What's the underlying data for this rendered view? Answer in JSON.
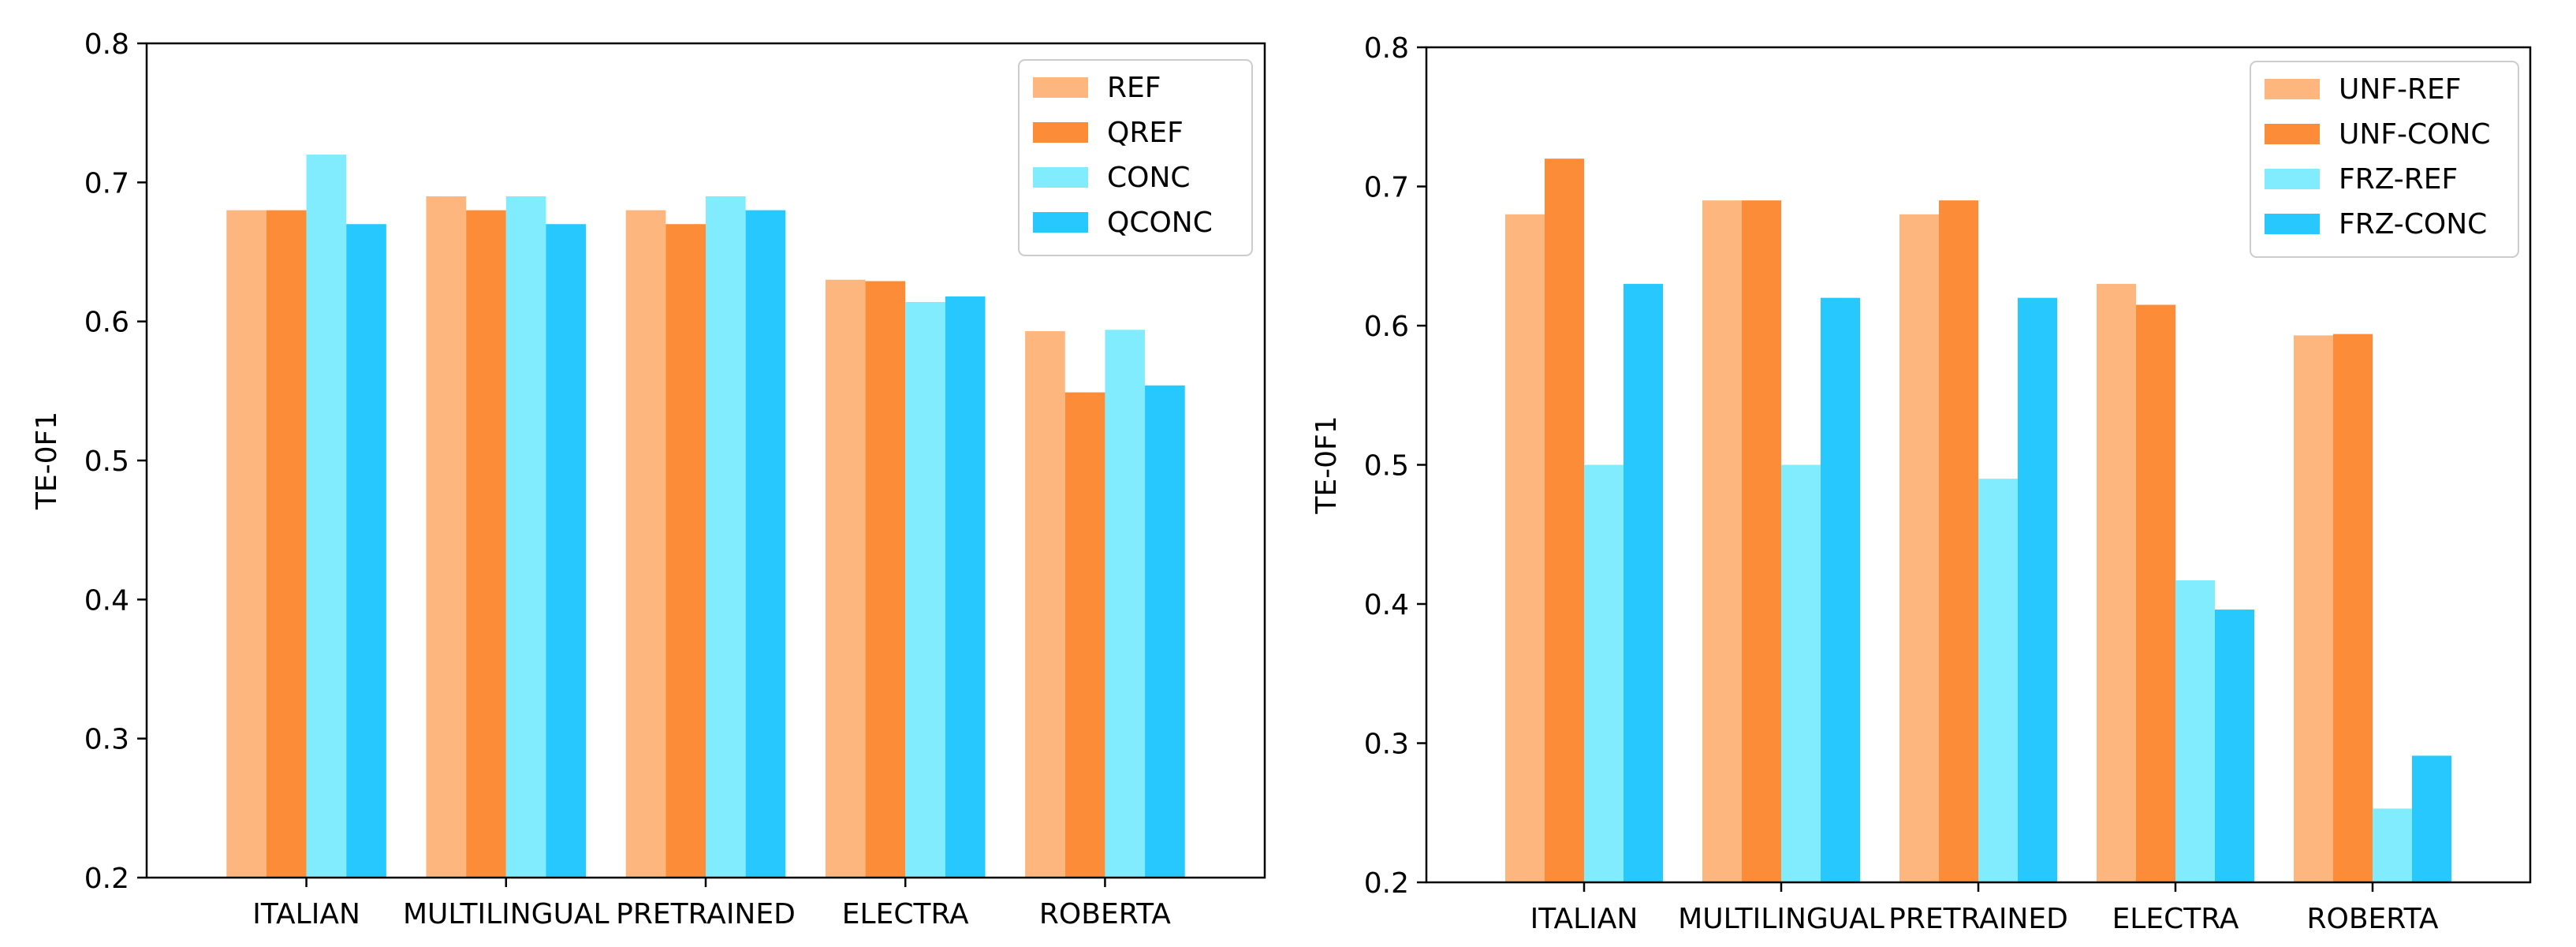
{
  "chart_data": [
    {
      "type": "bar",
      "title": "",
      "xlabel": "",
      "ylabel": "TE-0F1",
      "ylim": [
        0.2,
        0.8
      ],
      "yticks": [
        "0.2",
        "0.3",
        "0.4",
        "0.5",
        "0.6",
        "0.7",
        "0.8"
      ],
      "grid": false,
      "legend_position": "top-right",
      "categories": [
        "ITALIAN",
        "MULTILINGUAL",
        "PRETRAINED",
        "ELECTRA",
        "ROBERTA"
      ],
      "series": [
        {
          "name": "REF",
          "color": "#fdb77e",
          "values": [
            0.68,
            0.69,
            0.68,
            0.63,
            0.593
          ]
        },
        {
          "name": "QREF",
          "color": "#fd8c38",
          "values": [
            0.68,
            0.68,
            0.67,
            0.629,
            0.549
          ]
        },
        {
          "name": "CONC",
          "color": "#80ecfd",
          "values": [
            0.72,
            0.69,
            0.69,
            0.614,
            0.594
          ]
        },
        {
          "name": "QCONC",
          "color": "#26c8fd",
          "values": [
            0.67,
            0.67,
            0.68,
            0.618,
            0.554
          ]
        }
      ]
    },
    {
      "type": "bar",
      "title": "",
      "xlabel": "",
      "ylabel": "TE-0F1",
      "ylim": [
        0.2,
        0.8
      ],
      "yticks": [
        "0.2",
        "0.3",
        "0.4",
        "0.5",
        "0.6",
        "0.7",
        "0.8"
      ],
      "grid": false,
      "legend_position": "top-right",
      "categories": [
        "ITALIAN",
        "MULTILINGUAL",
        "PRETRAINED",
        "ELECTRA",
        "ROBERTA"
      ],
      "series": [
        {
          "name": "UNF-REF",
          "color": "#fdb77e",
          "values": [
            0.68,
            0.69,
            0.68,
            0.63,
            0.593
          ]
        },
        {
          "name": "UNF-CONC",
          "color": "#fd8c38",
          "values": [
            0.72,
            0.69,
            0.69,
            0.615,
            0.594
          ]
        },
        {
          "name": "FRZ-REF",
          "color": "#80ecfd",
          "values": [
            0.5,
            0.5,
            0.49,
            0.417,
            0.253
          ]
        },
        {
          "name": "FRZ-CONC",
          "color": "#26c8fd",
          "values": [
            0.63,
            0.62,
            0.62,
            0.396,
            0.291
          ]
        }
      ]
    }
  ]
}
